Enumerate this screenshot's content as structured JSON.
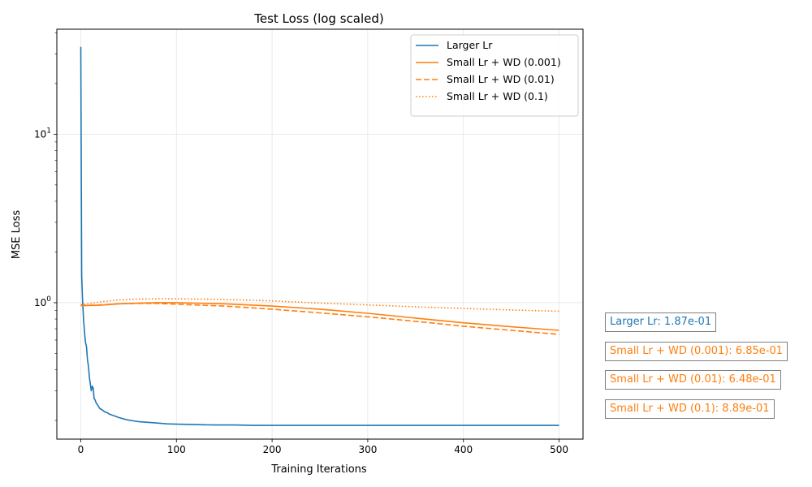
{
  "chart_data": {
    "type": "line",
    "title": "Test Loss (log scaled)",
    "xlabel": "Training Iterations",
    "ylabel": "MSE Loss",
    "xlim": [
      -25,
      525
    ],
    "ylim": [
      0.155,
      42
    ],
    "yscale": "log",
    "grid": true,
    "legend_position": "upper right",
    "x_ticks": [
      0,
      100,
      200,
      300,
      400,
      500
    ],
    "x_tick_labels": [
      "0",
      "100",
      "200",
      "300",
      "400",
      "500"
    ],
    "y_ticks": [
      1,
      10
    ],
    "y_tick_labels": [
      "10^0",
      "10^1"
    ],
    "series": [
      {
        "name": "Larger Lr",
        "color": "#1f77b4",
        "linestyle": "solid",
        "x": [
          0,
          1,
          2,
          3,
          4,
          5,
          6,
          7,
          8,
          9,
          10,
          11,
          12,
          13,
          14,
          15,
          16,
          18,
          20,
          22,
          25,
          28,
          30,
          33,
          36,
          40,
          45,
          50,
          55,
          60,
          70,
          80,
          90,
          100,
          120,
          140,
          160,
          180,
          200,
          250,
          300,
          350,
          400,
          450,
          500
        ],
        "y": [
          33,
          1.45,
          1.0,
          0.78,
          0.66,
          0.58,
          0.55,
          0.46,
          0.42,
          0.36,
          0.33,
          0.3,
          0.32,
          0.31,
          0.27,
          0.265,
          0.255,
          0.245,
          0.235,
          0.232,
          0.225,
          0.222,
          0.218,
          0.215,
          0.212,
          0.208,
          0.204,
          0.201,
          0.199,
          0.197,
          0.195,
          0.193,
          0.191,
          0.19,
          0.189,
          0.188,
          0.188,
          0.187,
          0.187,
          0.187,
          0.187,
          0.187,
          0.187,
          0.187,
          0.187
        ]
      },
      {
        "name": "Small Lr + WD (0.001)",
        "color": "#ff7f0e",
        "linestyle": "solid",
        "x": [
          0,
          20,
          40,
          60,
          80,
          100,
          120,
          150,
          200,
          250,
          300,
          350,
          400,
          450,
          500
        ],
        "y": [
          0.96,
          0.965,
          0.985,
          0.995,
          1.0,
          1.0,
          0.995,
          0.985,
          0.955,
          0.915,
          0.865,
          0.81,
          0.76,
          0.72,
          0.685
        ]
      },
      {
        "name": "Small Lr + WD (0.01)",
        "color": "#ff7f0e",
        "linestyle": "dashed",
        "x": [
          0,
          20,
          40,
          60,
          80,
          100,
          120,
          150,
          200,
          250,
          300,
          350,
          400,
          450,
          500
        ],
        "y": [
          0.96,
          0.97,
          0.985,
          0.99,
          0.99,
          0.98,
          0.97,
          0.955,
          0.915,
          0.87,
          0.825,
          0.775,
          0.725,
          0.685,
          0.648
        ]
      },
      {
        "name": "Small Lr + WD (0.1)",
        "color": "#ff7f0e",
        "linestyle": "dotted",
        "x": [
          0,
          20,
          40,
          60,
          80,
          100,
          120,
          150,
          200,
          250,
          300,
          350,
          400,
          450,
          500
        ],
        "y": [
          0.97,
          1.01,
          1.04,
          1.05,
          1.055,
          1.055,
          1.05,
          1.045,
          1.025,
          0.995,
          0.97,
          0.945,
          0.925,
          0.905,
          0.889
        ]
      }
    ],
    "annotations": [
      {
        "text": "Larger Lr: 1.87e-01",
        "color": "#1f77b4"
      },
      {
        "text": "Small Lr + WD (0.001): 6.85e-01",
        "color": "#ff7f0e"
      },
      {
        "text": "Small Lr + WD (0.01): 6.48e-01",
        "color": "#ff7f0e"
      },
      {
        "text": "Small Lr + WD (0.1): 8.89e-01",
        "color": "#ff7f0e"
      }
    ]
  }
}
